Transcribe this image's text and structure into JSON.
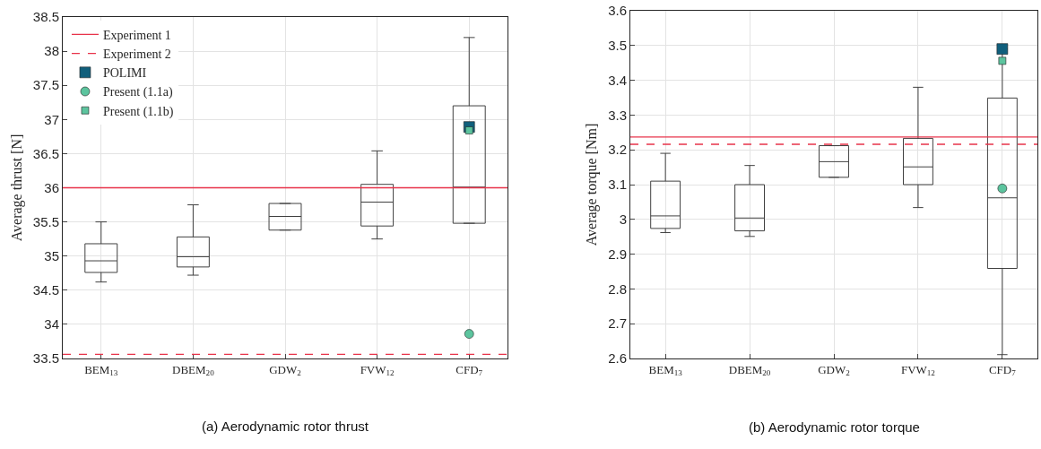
{
  "chart_data": [
    {
      "type": "box",
      "title": "(a) Aerodynamic rotor thrust",
      "ylabel": "Average thrust [N]",
      "categories": [
        "BEM$_{13}$",
        "DBEM$_{20}$",
        "GDW$_{2}$",
        "FVW$_{12}$",
        "CFD$_{7}$"
      ],
      "ylim": [
        33.5,
        38.5
      ],
      "yticks": [
        33.5,
        34,
        34.5,
        35,
        35.5,
        36,
        36.5,
        37,
        37.5,
        38,
        38.5
      ],
      "grid": true,
      "legend": "top left",
      "boxes": [
        {
          "low": 34.62,
          "q1": 34.76,
          "median": 34.93,
          "q3": 35.18,
          "high": 35.5
        },
        {
          "low": 34.72,
          "q1": 34.84,
          "median": 34.99,
          "q3": 35.28,
          "high": 35.75
        },
        {
          "low": 35.38,
          "q1": 35.38,
          "median": 35.58,
          "q3": 35.77,
          "high": 35.77
        },
        {
          "low": 35.25,
          "q1": 35.44,
          "median": 35.79,
          "q3": 36.05,
          "high": 36.54
        },
        {
          "low": 35.48,
          "q1": 35.48,
          "median": 36.01,
          "q3": 37.2,
          "high": 38.2
        }
      ],
      "color": "#404040",
      "ref_lines": [
        {
          "axis": "y",
          "value": 36.0,
          "label": "Experiment 1",
          "color": "#e8334a",
          "line_style": "solid"
        },
        {
          "axis": "y",
          "value": 33.56,
          "label": "Experiment 2",
          "color": "#e8334a",
          "line_style": "dashed"
        }
      ],
      "series": [
        {
          "type": "scatter",
          "name": "POLIMI",
          "color": "#105f7c",
          "marker": "square",
          "x": [
            "CFD$_{7}$"
          ],
          "values": [
            36.89
          ]
        },
        {
          "type": "scatter",
          "name": "Present (1.1a)",
          "color": "#5cc49e",
          "marker": "circle",
          "x": [
            "CFD$_{7}$"
          ],
          "values": [
            33.86
          ]
        },
        {
          "type": "scatter",
          "name": "Present (1.1b)",
          "color": "#5cc49e",
          "marker": "square",
          "x": [
            "CFD$_{7}$"
          ],
          "values": [
            36.84
          ]
        }
      ]
    },
    {
      "type": "box",
      "title": "(b) Aerodynamic rotor torque",
      "ylabel": "Average torque [Nm]",
      "categories": [
        "BEM$_{13}$",
        "DBEM$_{20}$",
        "GDW$_{2}$",
        "FVW$_{12}$",
        "CFD$_{7}$"
      ],
      "ylim": [
        2.6,
        3.6
      ],
      "yticks": [
        2.6,
        2.7,
        2.8,
        2.9,
        3,
        3.1,
        3.2,
        3.3,
        3.4,
        3.5,
        3.6
      ],
      "grid": true,
      "boxes": [
        {
          "low": 2.962,
          "q1": 2.974,
          "median": 3.01,
          "q3": 3.11,
          "high": 3.19
        },
        {
          "low": 2.951,
          "q1": 2.967,
          "median": 3.004,
          "q3": 3.1,
          "high": 3.155
        },
        {
          "low": 3.121,
          "q1": 3.121,
          "median": 3.166,
          "q3": 3.212,
          "high": 3.212
        },
        {
          "low": 3.034,
          "q1": 3.1,
          "median": 3.151,
          "q3": 3.233,
          "high": 3.38
        },
        {
          "low": 2.611,
          "q1": 2.859,
          "median": 3.062,
          "q3": 3.349,
          "high": 3.49
        }
      ],
      "color": "#404040",
      "ref_lines": [
        {
          "axis": "y",
          "value": 3.237,
          "color": "#e8334a",
          "line_style": "solid"
        },
        {
          "axis": "y",
          "value": 3.216,
          "color": "#e8334a",
          "line_style": "dashed"
        }
      ],
      "series": [
        {
          "type": "scatter",
          "color": "#105f7c",
          "marker": "square",
          "x": [
            "CFD$_{7}$"
          ],
          "values": [
            3.49
          ]
        },
        {
          "type": "scatter",
          "color": "#5cc49e",
          "marker": "circle",
          "x": [
            "CFD$_{7}$"
          ],
          "values": [
            3.089
          ]
        },
        {
          "type": "scatter",
          "color": "#5cc49e",
          "marker": "square",
          "x": [
            "CFD$_{7}$"
          ],
          "values": [
            3.456
          ]
        }
      ]
    }
  ]
}
